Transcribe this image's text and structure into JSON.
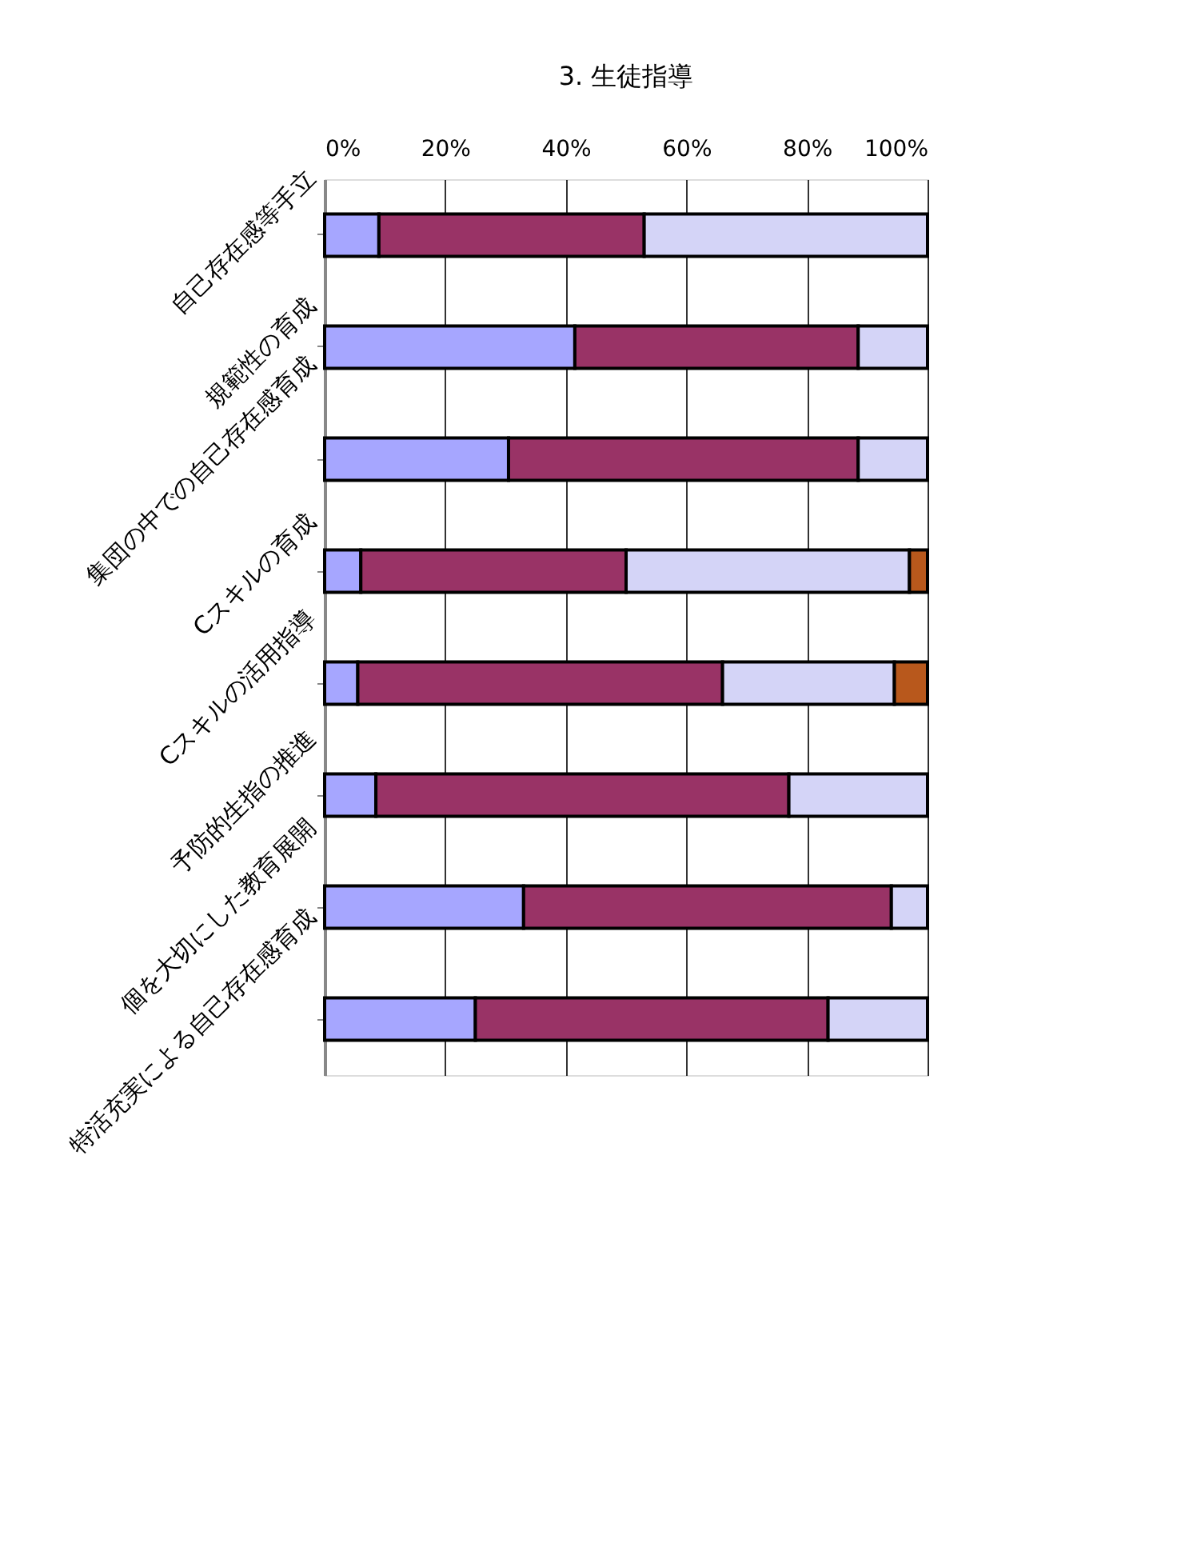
{
  "chart_data": {
    "type": "bar",
    "orientation": "horizontal",
    "stacked": true,
    "title": "3. 生徒指導",
    "categories": [
      "自己存在感等手立",
      "規範性の育成",
      "集団の中での自己存在感育成",
      "Cスキルの育成",
      "Cスキルの活用指導",
      "予防的生指の推進",
      "個を大切にした教育展開",
      "特活充実による自己存在感育成"
    ],
    "series": [
      {
        "color": "#a6a6ff",
        "values": [
          9,
          41.5,
          30.5,
          6,
          5.5,
          8.5,
          33,
          25
        ]
      },
      {
        "color": "#993366",
        "values": [
          44,
          47,
          58,
          44,
          60.5,
          68.5,
          61,
          58.5
        ]
      },
      {
        "color": "#d4d4f7",
        "values": [
          47,
          11.5,
          11.5,
          47,
          28.5,
          23,
          6,
          16.5
        ]
      },
      {
        "color": "#b8581c",
        "values": [
          null,
          null,
          null,
          3,
          5.5,
          null,
          null,
          null
        ]
      }
    ],
    "xlim": [
      0,
      100
    ],
    "xticks": [
      {
        "value": 0,
        "label": "0%"
      },
      {
        "value": 20,
        "label": "20%"
      },
      {
        "value": 40,
        "label": "40%"
      },
      {
        "value": 60,
        "label": "60%"
      },
      {
        "value": 80,
        "label": "80%"
      },
      {
        "value": 100,
        "label": "100%"
      }
    ],
    "grid": "x"
  }
}
